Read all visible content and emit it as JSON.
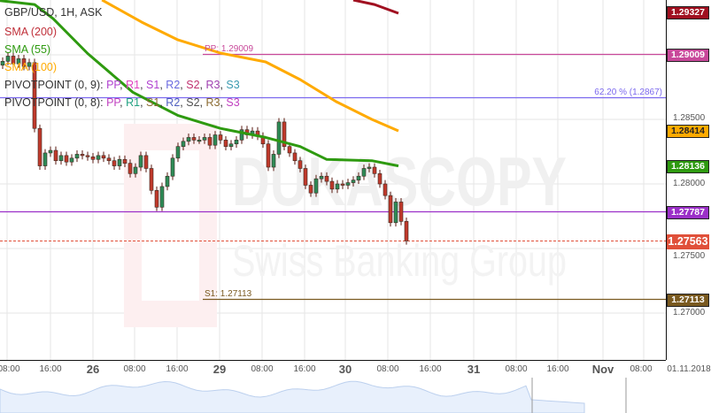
{
  "header": {
    "title": "GBP/USD, 1H, ASK"
  },
  "legend": {
    "sma200": "SMA (200)",
    "sma55": "SMA (55)",
    "sma100": "SMA (100)",
    "pivot9_prefix": "PIVOTPOINT (0, 9): ",
    "pivot9_items": [
      "PP",
      "R1",
      "S1",
      "R2",
      "S2",
      "R3",
      "S3"
    ],
    "pivot9_colors": [
      "#b040d0",
      "#e040c0",
      "#b040d0",
      "#6a6ae0",
      "#c03070",
      "#a040b0",
      "#3a9ab0"
    ],
    "pivot8_prefix": "PIVOTPOINT (0, 8): ",
    "pivot8_items": [
      "PP",
      "R1",
      "S1",
      "R2",
      "S2",
      "R3",
      "S3"
    ],
    "pivot8_colors": [
      "#c040c0",
      "#20a080",
      "#8a6a30",
      "#5060c0",
      "#505050",
      "#8a6a30",
      "#c040c0"
    ]
  },
  "watermark": {
    "brand": "DUKASCOPY",
    "tagline": "Swiss Banking Group"
  },
  "chart_data": {
    "type": "candlestick",
    "title": "GBP/USD, 1H, ASK",
    "ylim": [
      1.2655,
      1.2955
    ],
    "y_ticks": [
      "1.28500",
      "1.28000",
      "1.27500",
      "1.27000"
    ],
    "x_ticks": [
      {
        "label": "08:00",
        "big": false
      },
      {
        "label": "16:00",
        "big": false
      },
      {
        "label": "26",
        "big": true
      },
      {
        "label": "08:00",
        "big": false
      },
      {
        "label": "16:00",
        "big": false
      },
      {
        "label": "29",
        "big": true
      },
      {
        "label": "08:00",
        "big": false
      },
      {
        "label": "16:00",
        "big": false
      },
      {
        "label": "30",
        "big": true
      },
      {
        "label": "08:00",
        "big": false
      },
      {
        "label": "16:00",
        "big": false
      },
      {
        "label": "31",
        "big": true
      },
      {
        "label": "08:00",
        "big": false
      },
      {
        "label": "16:00",
        "big": false
      },
      {
        "label": "Nov",
        "big": true
      },
      {
        "label": "08:00",
        "big": false
      },
      {
        "label": "01.11.2018",
        "big": false
      }
    ],
    "colors": {
      "up": "#2e8b57",
      "down": "#c0392b"
    },
    "closes": [
      1.2895,
      1.2899,
      1.2893,
      1.2897,
      1.2891,
      1.2894,
      1.2843,
      1.2814,
      1.2824,
      1.2826,
      1.2818,
      1.2822,
      1.2817,
      1.282,
      1.2823,
      1.2822,
      1.2821,
      1.2819,
      1.2822,
      1.282,
      1.2818,
      1.2814,
      1.2819,
      1.2816,
      1.2808,
      1.2813,
      1.2822,
      1.2812,
      1.2795,
      1.2782,
      1.2798,
      1.2806,
      1.282,
      1.2829,
      1.2833,
      1.2836,
      1.2834,
      1.2834,
      1.2836,
      1.283,
      1.2838,
      1.2834,
      1.2829,
      1.2831,
      1.2834,
      1.2842,
      1.2838,
      1.2841,
      1.2837,
      1.2831,
      1.2813,
      1.2823,
      1.2848,
      1.2829,
      1.2824,
      1.2818,
      1.2812,
      1.2799,
      1.2793,
      1.2804,
      1.2806,
      1.2802,
      1.2796,
      1.28,
      1.2799,
      1.2801,
      1.2803,
      1.2806,
      1.2812,
      1.2813,
      1.2808,
      1.28,
      1.2791,
      1.277,
      1.2786,
      1.2771,
      1.2756
    ],
    "series": [
      {
        "name": "SMA (55)",
        "color": "#2e9a10",
        "points": [
          [
            -0.5,
            1.2942
          ],
          [
            6,
            1.2939
          ],
          [
            9.5,
            1.2928
          ],
          [
            16,
            1.2901
          ],
          [
            24.5,
            1.2871
          ],
          [
            33,
            1.2853
          ],
          [
            41,
            1.2843
          ],
          [
            49.5,
            1.2836
          ],
          [
            56,
            1.2829
          ],
          [
            61,
            1.2819
          ],
          [
            69.5,
            1.2818
          ],
          [
            74.5,
            1.2814
          ]
        ]
      },
      {
        "name": "SMA (100)",
        "color": "#ffaa00",
        "points": [
          [
            18.7,
            1.29425
          ],
          [
            26.2,
            1.29253
          ],
          [
            33,
            1.29116
          ],
          [
            41,
            1.29014
          ],
          [
            49.5,
            1.28945
          ],
          [
            56,
            1.28808
          ],
          [
            62.8,
            1.28637
          ],
          [
            69.5,
            1.285
          ],
          [
            74.5,
            1.28411
          ]
        ]
      },
      {
        "name": "SMA (200)",
        "color": "#a01020",
        "points": [
          [
            66,
            1.29425
          ],
          [
            70,
            1.2939
          ],
          [
            74.5,
            1.29322
          ]
        ]
      }
    ],
    "levels": [
      {
        "id": "pp",
        "label": "PP: 1.29009",
        "value": 1.29009,
        "tag": "1.29009",
        "color": "#c8489a",
        "from_label": true
      },
      {
        "id": "fib",
        "label": "62.20 % (1.2867)",
        "value": 1.2867,
        "tag": "",
        "color": "#7b68ee",
        "from_label": false
      },
      {
        "id": "purple",
        "label": "",
        "value": 1.27787,
        "tag": "1.27787",
        "color": "#9b30c8",
        "from_label": false
      },
      {
        "id": "s1",
        "label": "S1: 1.27113",
        "value": 1.27113,
        "tag": "1.27113",
        "color": "#7a5a20",
        "from_label": true
      }
    ],
    "price_tags": [
      {
        "value": 1.29327,
        "text": "1.29327",
        "color": "#a01020"
      },
      {
        "value": 1.28414,
        "text": "1.28414",
        "color": "#ffaa00",
        "dark": true
      },
      {
        "value": 1.28136,
        "text": "1.28136",
        "color": "#2e9a10"
      }
    ],
    "current": {
      "value": 1.27563,
      "text": "1.27563",
      "color": "#e0503a"
    }
  }
}
